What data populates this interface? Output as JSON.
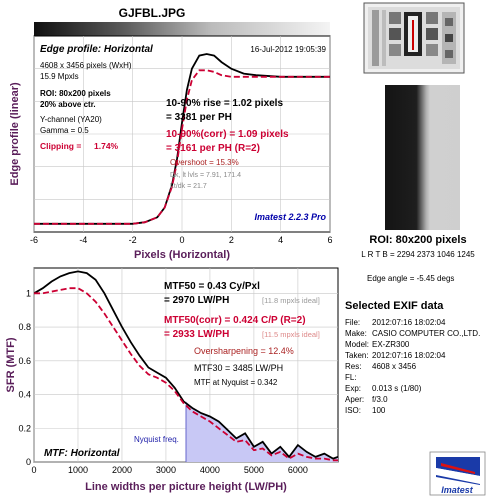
{
  "file_title": "GJFBL.JPG",
  "colors": {
    "title_purple": "#5a1e5a",
    "rise_red": "#cc0033",
    "grid": "#c8c8c8",
    "imatest_blue": "#0000aa",
    "nyquist_fill": "#c8c8f5",
    "overshoot_marker": "#cc0000",
    "logo_red": "#d11",
    "logo_blue": "#1a3aa8"
  },
  "chart_data": [
    {
      "type": "line",
      "title": "Edge profile: Horizontal",
      "date": "16-Jul-2012 19:05:39",
      "xlabel": "Pixels (Horizontal)",
      "ylabel": "Edge profile (linear)",
      "xlim": [
        -6,
        6
      ],
      "xticks": [
        "-6",
        "-4",
        "-2",
        "0",
        "2",
        "4",
        "6"
      ],
      "ylim": [
        0.05,
        1.25
      ],
      "grid": true,
      "info_lines": [
        "4608 x 3456 pixels (WxH)",
        "15.9 Mpxls"
      ],
      "roi_lines": [
        "ROI: 80x200 pixels",
        "20% above ctr."
      ],
      "channel_lines": [
        "Y-channel (YA20)",
        "Gamma = 0.5"
      ],
      "clipping_label": "Clipping =",
      "clipping_value": "1.74%",
      "rise_lines": [
        "10-90% rise = 1.02 pixels",
        "= 3381 per PH"
      ],
      "rise_corr_lines": [
        "10-90%(corr) = 1.09 pixels",
        "= 3161 per PH  (R=2)"
      ],
      "overshoot": "Overshoot = 15.3%",
      "small_lines": [
        "Dk, lt lvls = 7.91, 171.4",
        "Lt/dk = 21.7"
      ],
      "software": "Imatest 2.2.3 Pro",
      "series": [
        {
          "x": [
            -6,
            -5,
            -4,
            -3,
            -2,
            -1.5,
            -1,
            -0.7,
            -0.4,
            -0.2,
            0,
            0.2,
            0.4,
            0.7,
            1,
            1.3,
            1.6,
            2,
            2.5,
            3,
            4,
            5,
            6
          ],
          "values": [
            0.1,
            0.1,
            0.1,
            0.1,
            0.1,
            0.11,
            0.14,
            0.2,
            0.34,
            0.5,
            0.72,
            0.92,
            1.05,
            1.13,
            1.14,
            1.13,
            1.09,
            1.05,
            1.02,
            1.01,
            1.0,
            1.0,
            1.0
          ]
        },
        {
          "x": [
            -6,
            -5,
            -4,
            -3,
            -2,
            -1.5,
            -1,
            -0.7,
            -0.4,
            -0.2,
            0,
            0.2,
            0.4,
            0.7,
            1,
            1.3,
            1.6,
            2,
            2.5,
            3,
            4,
            5,
            6
          ],
          "values": [
            0.1,
            0.1,
            0.1,
            0.1,
            0.1,
            0.11,
            0.14,
            0.2,
            0.33,
            0.48,
            0.68,
            0.86,
            0.98,
            1.04,
            1.04,
            1.03,
            1.01,
            1.0,
            1.0,
            1.0,
            1.0,
            1.0,
            1.0
          ]
        }
      ]
    },
    {
      "type": "line",
      "title": "MTF: Horizontal",
      "xlabel": "Line widths per picture height (LW/PH)",
      "ylabel": "SFR (MTF)",
      "xlim": [
        0,
        6912
      ],
      "xticks": [
        "0",
        "1000",
        "2000",
        "3000",
        "4000",
        "5000",
        "6000"
      ],
      "ylim": [
        0,
        1.15
      ],
      "yticks": [
        "0",
        "0.2",
        "0.4",
        "0.6",
        "0.8",
        "1"
      ],
      "grid": true,
      "nyquist_label": "Nyquist freq.",
      "nyquist_x": 3456,
      "mtf50_lines": [
        "MTF50 = 0.43 Cy/Pxl",
        "= 2970 LW/PH"
      ],
      "mtf50_ideal": "[11.8 mpxls ideal]",
      "mtf50_corr_lines": [
        "MTF50(corr) = 0.424 C/P  (R=2)",
        "= 2933 LW/PH"
      ],
      "mtf50_corr_ideal": "[11.5 mpxls ideal]",
      "oversharpening": "Oversharpening = 12.4%",
      "mtf30": "MTF30 = 3485 LW/PH",
      "mtf_nyquist": "MTF at Nyquist = 0.342",
      "series": [
        {
          "x": [
            0,
            200,
            400,
            600,
            800,
            1000,
            1200,
            1400,
            1600,
            1800,
            2000,
            2200,
            2400,
            2600,
            2800,
            3000,
            3200,
            3400,
            3600,
            3800,
            4000,
            4200,
            4400,
            4600,
            4800,
            5000,
            5200,
            5400,
            5600,
            5800,
            6000,
            6200,
            6400,
            6600,
            6800,
            6912
          ],
          "values": [
            1.0,
            1.03,
            1.07,
            1.1,
            1.12,
            1.13,
            1.12,
            1.08,
            1.0,
            0.9,
            0.8,
            0.71,
            0.63,
            0.56,
            0.53,
            0.5,
            0.44,
            0.36,
            0.32,
            0.29,
            0.27,
            0.24,
            0.19,
            0.14,
            0.17,
            0.09,
            0.12,
            0.05,
            0.09,
            0.03,
            0.1,
            0.06,
            0.03,
            0.05,
            0.02,
            0.03
          ]
        },
        {
          "x": [
            0,
            200,
            400,
            600,
            800,
            1000,
            1200,
            1400,
            1600,
            1800,
            2000,
            2200,
            2400,
            2600,
            2800,
            3000,
            3200,
            3400,
            3600,
            3800,
            4000,
            4200,
            4400,
            4600,
            4800,
            5000,
            5200,
            5400,
            5600,
            5800,
            6000,
            6200,
            6400,
            6600,
            6800,
            6912
          ],
          "values": [
            1.0,
            1.0,
            1.01,
            1.02,
            1.03,
            1.03,
            1.0,
            0.95,
            0.88,
            0.8,
            0.72,
            0.64,
            0.57,
            0.52,
            0.5,
            0.47,
            0.42,
            0.35,
            0.3,
            0.27,
            0.24,
            0.2,
            0.16,
            0.12,
            0.13,
            0.07,
            0.08,
            0.04,
            0.06,
            0.02,
            0.05,
            0.03,
            0.02,
            0.02,
            0.01,
            0.01
          ]
        }
      ]
    }
  ],
  "roi": {
    "label": "ROI: 80x200 pixels",
    "coords": "L R T B = 2294 2373  1046 1245",
    "edge_angle": "Edge angle = -5.45 degs"
  },
  "exif": {
    "title": "Selected EXIF data",
    "rows": [
      {
        "k": "File:",
        "v": "2012:07:16 18:02:04"
      },
      {
        "k": "Make:",
        "v": "CASIO COMPUTER CO.,LTD."
      },
      {
        "k": "Model:",
        "v": "EX-ZR300"
      },
      {
        "k": "Taken:",
        "v": "2012:07:16 18:02:04"
      },
      {
        "k": "Res:",
        "v": "4608 x 3456"
      },
      {
        "k": "FL:",
        "v": ""
      },
      {
        "k": "Exp:",
        "v": "0.013 s  (1/80)"
      },
      {
        "k": "Aper:",
        "v": "f/3.0"
      },
      {
        "k": "ISO:",
        "v": "100"
      }
    ]
  },
  "logo_text": "Imatest"
}
